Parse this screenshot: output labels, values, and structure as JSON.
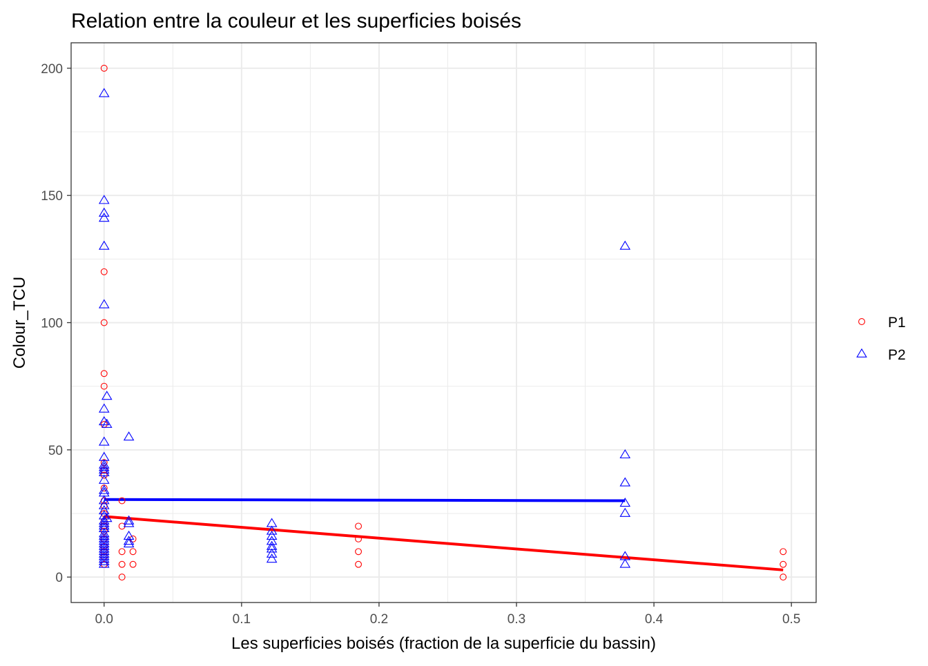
{
  "chart_data": {
    "type": "scatter",
    "title": "Relation entre la couleur et les superficies boisés",
    "xlabel": "Les superficies boisés (fraction de la superficie du bassin)",
    "ylabel": "Colour_TCU",
    "xlim": [
      -0.024,
      0.518
    ],
    "ylim": [
      -10,
      210
    ],
    "x_ticks": [
      0.0,
      0.1,
      0.2,
      0.3,
      0.4,
      0.5
    ],
    "x_tick_labels": [
      "0.0",
      "0.1",
      "0.2",
      "0.3",
      "0.4",
      "0.5"
    ],
    "y_ticks": [
      0,
      50,
      100,
      150,
      200
    ],
    "y_tick_labels": [
      "0",
      "50",
      "100",
      "150",
      "200"
    ],
    "grid": true,
    "legend_position": "right",
    "series": [
      {
        "name": "P1",
        "color": "#ff0000",
        "marker": "circle",
        "points": [
          [
            0.0,
            200
          ],
          [
            0.0,
            120
          ],
          [
            0.0,
            100
          ],
          [
            0.0,
            80
          ],
          [
            0.0,
            75
          ],
          [
            0.0,
            60
          ],
          [
            0.0,
            45
          ],
          [
            0.0,
            42
          ],
          [
            0.0,
            40
          ],
          [
            0.0,
            35
          ],
          [
            0.0,
            30
          ],
          [
            0.0,
            28
          ],
          [
            0.0,
            25
          ],
          [
            0.0,
            22
          ],
          [
            0.0,
            20
          ],
          [
            0.0,
            18
          ],
          [
            0.0,
            15
          ],
          [
            0.0,
            12
          ],
          [
            0.0,
            10
          ],
          [
            0.0,
            8
          ],
          [
            0.0,
            5
          ],
          [
            0.013,
            30
          ],
          [
            0.013,
            20
          ],
          [
            0.013,
            10
          ],
          [
            0.013,
            5
          ],
          [
            0.013,
            0
          ],
          [
            0.021,
            15
          ],
          [
            0.021,
            10
          ],
          [
            0.021,
            5
          ],
          [
            0.185,
            20
          ],
          [
            0.185,
            15
          ],
          [
            0.185,
            10
          ],
          [
            0.185,
            5
          ],
          [
            0.494,
            10
          ],
          [
            0.494,
            5
          ],
          [
            0.494,
            0
          ]
        ],
        "fit": {
          "x": [
            0.0,
            0.494
          ],
          "y": [
            23.8,
            2.8
          ]
        }
      },
      {
        "name": "P2",
        "color": "#0000ff",
        "marker": "triangle",
        "points": [
          [
            0.0,
            190
          ],
          [
            0.0,
            148
          ],
          [
            0.0,
            143
          ],
          [
            0.0,
            141
          ],
          [
            0.0,
            130
          ],
          [
            0.0,
            107
          ],
          [
            0.002,
            71
          ],
          [
            0.0,
            66
          ],
          [
            0.0,
            61
          ],
          [
            0.002,
            60
          ],
          [
            0.0,
            53
          ],
          [
            0.0,
            47
          ],
          [
            0.0,
            44
          ],
          [
            0.0,
            43
          ],
          [
            0.0,
            42
          ],
          [
            0.0,
            41
          ],
          [
            0.0,
            38
          ],
          [
            0.0,
            34
          ],
          [
            0.0,
            33
          ],
          [
            0.0,
            30
          ],
          [
            0.0,
            28
          ],
          [
            0.0,
            26
          ],
          [
            0.0,
            24
          ],
          [
            0.002,
            23
          ],
          [
            0.0,
            22
          ],
          [
            0.0,
            21
          ],
          [
            0.0,
            20
          ],
          [
            0.0,
            19
          ],
          [
            0.0,
            17
          ],
          [
            0.0,
            16
          ],
          [
            0.0,
            15
          ],
          [
            0.0,
            14
          ],
          [
            0.0,
            13
          ],
          [
            0.0,
            12
          ],
          [
            0.0,
            11
          ],
          [
            0.0,
            10
          ],
          [
            0.0,
            9
          ],
          [
            0.0,
            8
          ],
          [
            0.0,
            7
          ],
          [
            0.0,
            6
          ],
          [
            0.0,
            5
          ],
          [
            0.018,
            55
          ],
          [
            0.018,
            22
          ],
          [
            0.018,
            21
          ],
          [
            0.018,
            16
          ],
          [
            0.018,
            14
          ],
          [
            0.018,
            13
          ],
          [
            0.122,
            21
          ],
          [
            0.122,
            18
          ],
          [
            0.122,
            16
          ],
          [
            0.122,
            14
          ],
          [
            0.122,
            12
          ],
          [
            0.122,
            11
          ],
          [
            0.122,
            9
          ],
          [
            0.122,
            7
          ],
          [
            0.379,
            130
          ],
          [
            0.379,
            48
          ],
          [
            0.379,
            37
          ],
          [
            0.379,
            29
          ],
          [
            0.379,
            25
          ],
          [
            0.379,
            8
          ],
          [
            0.379,
            5
          ]
        ],
        "fit": {
          "x": [
            0.0,
            0.379
          ],
          "y": [
            30.5,
            30.0
          ]
        }
      }
    ]
  }
}
